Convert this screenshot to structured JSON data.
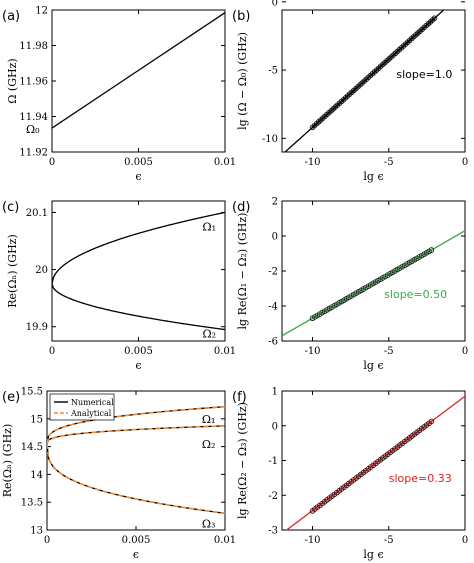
{
  "chart_data": [
    {
      "id": "a",
      "type": "line",
      "panel_label": "(a)",
      "xlabel": "ϵ",
      "ylabel": "Ω (GHz)",
      "xlim": [
        0,
        0.01
      ],
      "ylim": [
        11.92,
        12
      ],
      "xticks": [
        0,
        0.005,
        0.01
      ],
      "xtick_labels": [
        "0",
        "0.005",
        "0.01"
      ],
      "yticks": [
        11.92,
        11.94,
        11.96,
        11.98,
        12
      ],
      "ytick_labels": [
        "11.92",
        "11.94",
        "11.96",
        "11.98",
        "12"
      ],
      "series": [
        {
          "color": "#000000",
          "style": "solid",
          "x": [
            0,
            0.01
          ],
          "y": [
            11.9335,
            11.9985
          ]
        }
      ],
      "annotations": [
        {
          "text": "Ω₀",
          "x": -0.0015,
          "y": 11.933
        }
      ],
      "grid": false
    },
    {
      "id": "b",
      "type": "line",
      "panel_label": "(b)",
      "xlabel": "lg ϵ",
      "ylabel": "lg (Ω − Ω₀) (GHz)",
      "xlim": [
        -12,
        0
      ],
      "ylim": [
        -11,
        -0.6
      ],
      "xticks": [
        -10,
        -5,
        0
      ],
      "xtick_labels": [
        "-10",
        "-5",
        "0"
      ],
      "yticks": [
        -10,
        -5,
        0
      ],
      "ytick_labels": [
        "-10",
        "-5",
        "0"
      ],
      "series": [
        {
          "color": "#000000",
          "style": "solid",
          "x": [
            -12,
            -0.5
          ],
          "y": [
            -11.2,
            0.3
          ]
        },
        {
          "color": "#000000",
          "style": "markers",
          "x_start": -10,
          "x_end": -2,
          "count": 60,
          "slope": 1.0,
          "intercept": 0.8
        }
      ],
      "annotations": [
        {
          "text": "slope=1.0",
          "x": -4.5,
          "y": -5.3,
          "color": "#000000"
        }
      ],
      "grid": false
    },
    {
      "id": "c",
      "type": "line",
      "panel_label": "(c)",
      "xlabel": "ϵ",
      "ylabel": "Re(Ωₙ) (GHz)",
      "xlim": [
        0,
        0.01
      ],
      "ylim": [
        19.875,
        20.12
      ],
      "xticks": [
        0,
        0.005,
        0.01
      ],
      "xtick_labels": [
        "0",
        "0.005",
        "0.01"
      ],
      "yticks": [
        19.9,
        20,
        20.1
      ],
      "ytick_labels": [
        "19.9",
        "20",
        "20.1"
      ],
      "series": [
        {
          "name": "Ω₁",
          "color": "#000000",
          "style": "solid",
          "model": "sqrt",
          "center": 19.975,
          "amp": 1.25,
          "sign": 1
        },
        {
          "name": "Ω₂",
          "color": "#000000",
          "style": "solid",
          "model": "sqrt",
          "center": 19.975,
          "amp": 0.8,
          "sign": -1
        }
      ],
      "annotations": [
        {
          "text": "Ω₁",
          "x": 0.0087,
          "y": 20.075
        },
        {
          "text": "Ω₂",
          "x": 0.0087,
          "y": 19.888
        }
      ],
      "grid": false
    },
    {
      "id": "d",
      "type": "line",
      "panel_label": "(d)",
      "xlabel": "lg ϵ",
      "ylabel": "lg Re(Ω₁ − Ω₂) (GHz)",
      "xlim": [
        -12,
        0
      ],
      "ylim": [
        -6,
        2
      ],
      "xticks": [
        -10,
        -5,
        0
      ],
      "xtick_labels": [
        "-10",
        "-5",
        "0"
      ],
      "yticks": [
        -6,
        -4,
        -2,
        0,
        2
      ],
      "ytick_labels": [
        "-6",
        "-4",
        "-2",
        "0",
        "2"
      ],
      "series": [
        {
          "color": "#3aaa4a",
          "style": "solid",
          "x": [
            -12,
            0
          ],
          "y": [
            -5.7,
            0.3
          ]
        },
        {
          "color": "#3aaa4a",
          "style": "markers",
          "x_start": -10,
          "x_end": -2.2,
          "count": 50,
          "slope": 0.5,
          "intercept": 0.3
        }
      ],
      "annotations": [
        {
          "text": "slope=0.50",
          "x": -5.3,
          "y": -3.3,
          "color": "#3aaa4a"
        }
      ],
      "grid": false
    },
    {
      "id": "e",
      "type": "line",
      "panel_label": "(e)",
      "xlabel": "ϵ",
      "ylabel": "Re(Ωₙ) (GHz)",
      "xlim": [
        0,
        0.01
      ],
      "ylim": [
        13,
        15.5
      ],
      "xticks": [
        0,
        0.005,
        0.01
      ],
      "xtick_labels": [
        "0",
        "0.005",
        "0.01"
      ],
      "yticks": [
        13,
        13.5,
        14,
        14.5,
        15,
        15.5
      ],
      "ytick_labels": [
        "13",
        "13.5",
        "14",
        "14.5",
        "15",
        "15.5"
      ],
      "legend": {
        "placement": "top-left",
        "entries": [
          "Numerical",
          "Analytical"
        ]
      },
      "series": [
        {
          "name": "Numerical",
          "color": "#000000",
          "style": "solid",
          "model": "cbrt",
          "center": 14.55,
          "amp": 3.1,
          "sign": 1
        },
        {
          "color": "#000000",
          "style": "solid",
          "model": "cbrt",
          "center": 14.55,
          "amp": 1.5,
          "sign": 1
        },
        {
          "color": "#000000",
          "style": "solid",
          "model": "cbrt",
          "center": 14.55,
          "amp": 5.8,
          "sign": -1
        },
        {
          "name": "Analytical",
          "color": "#f08a30",
          "style": "dashed",
          "model": "cbrt",
          "center": 14.55,
          "amp": 3.1,
          "sign": 1
        },
        {
          "color": "#f08a30",
          "style": "dashed",
          "model": "cbrt",
          "center": 14.55,
          "amp": 1.5,
          "sign": 1
        },
        {
          "color": "#f08a30",
          "style": "dashed",
          "model": "cbrt",
          "center": 14.55,
          "amp": 5.8,
          "sign": -1
        }
      ],
      "annotations": [
        {
          "text": "Ω₁",
          "x": 0.0087,
          "y": 15.0
        },
        {
          "text": "Ω₂",
          "x": 0.0087,
          "y": 14.55
        },
        {
          "text": "Ω₃",
          "x": 0.0087,
          "y": 13.12
        }
      ],
      "grid": false
    },
    {
      "id": "f",
      "type": "line",
      "panel_label": "(f)",
      "xlabel": "lg ϵ",
      "ylabel": "lg Re(Ω₂ − Ω₃) (GHz)",
      "xlim": [
        -12,
        0
      ],
      "ylim": [
        -3,
        1
      ],
      "xticks": [
        -10,
        -5,
        0
      ],
      "xtick_labels": [
        "-10",
        "-5",
        "0"
      ],
      "yticks": [
        -3,
        -2,
        -1,
        0,
        1
      ],
      "ytick_labels": [
        "-3",
        "-2",
        "-1",
        "0",
        "1"
      ],
      "series": [
        {
          "color": "#e02020",
          "style": "solid",
          "x": [
            -12,
            0
          ],
          "y": [
            -3.1,
            0.85
          ]
        },
        {
          "color": "#e02020",
          "style": "markers",
          "x_start": -10,
          "x_end": -2.2,
          "count": 50,
          "slope": 0.33,
          "intercept": 0.85
        }
      ],
      "annotations": [
        {
          "text": "slope=0.33",
          "x": -5.0,
          "y": -1.5,
          "color": "#e02020"
        }
      ],
      "grid": false
    }
  ]
}
